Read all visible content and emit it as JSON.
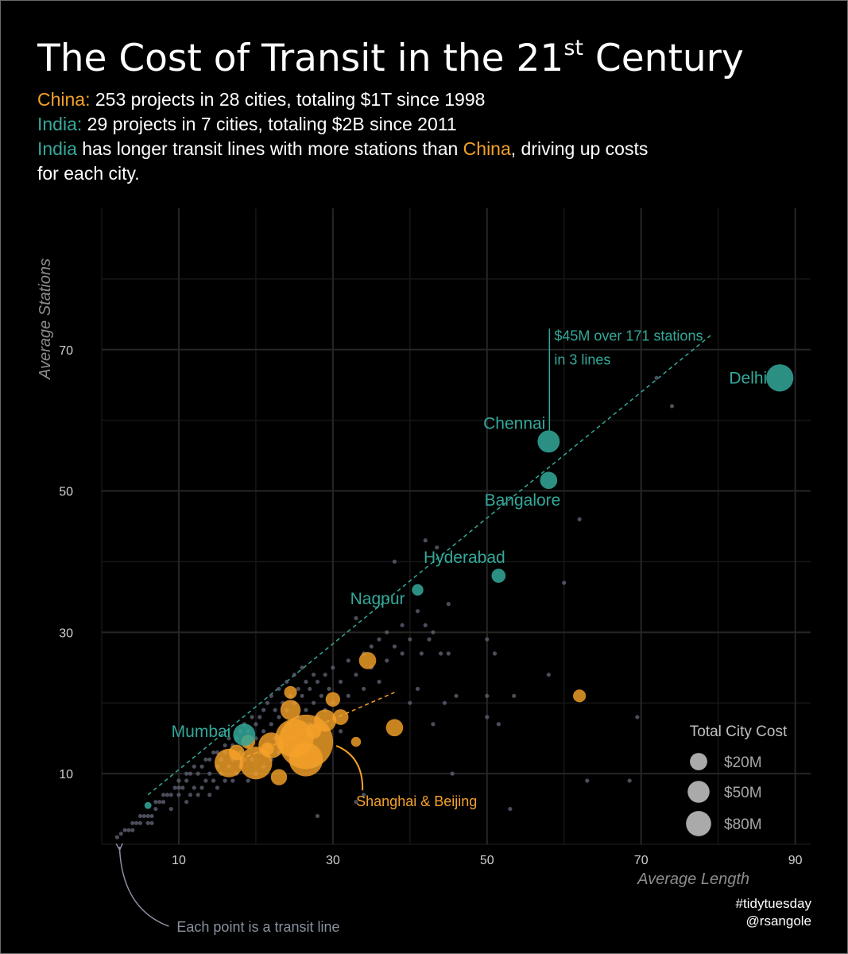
{
  "header": {
    "title": "The Cost of Transit in the 21",
    "title_sup": "st",
    "title_end": " Century",
    "china_label": "China:",
    "china_text": " 253 projects in 28 cities, totaling $1T since 1998",
    "india_label": "India:",
    "india_text": "  29 projects in 7 cities, totaling $2B since 2011",
    "line3_india": "India",
    "line3_mid": " has longer transit lines with more stations than ",
    "line3_china": "China",
    "line3_end": ", driving up costs",
    "line4": "for each city."
  },
  "credits": {
    "line1": "#tidytuesday",
    "line2": "@rsangole"
  },
  "chart_data": {
    "type": "scatter",
    "xlabel": "Average Length",
    "ylabel": "Average Stations",
    "xlim": [
      0,
      92
    ],
    "ylim": [
      0,
      90
    ],
    "x_ticks": [
      10,
      30,
      50,
      70,
      90
    ],
    "y_ticks": [
      10,
      30,
      50,
      70
    ],
    "grid": true,
    "legend_placement": "bottom-right",
    "colors": {
      "china": "#f5a12a",
      "india": "#34a89a",
      "other": "#5c6070",
      "muted": "#8a90a0"
    },
    "size_legend": {
      "title": "Total City Cost",
      "entries": [
        {
          "label": "$20M",
          "value": 20
        },
        {
          "label": "$50M",
          "value": 50
        },
        {
          "label": "$80M",
          "value": 80
        }
      ]
    },
    "india_cities": [
      {
        "name": "Delhi",
        "x": 88,
        "y": 66,
        "cost": 45
      },
      {
        "name": "Chennai",
        "x": 58,
        "y": 57,
        "cost": 30
      },
      {
        "name": "Bangalore",
        "x": 58,
        "y": 51.5,
        "cost": 18
      },
      {
        "name": "Hyderabad",
        "x": 51.5,
        "y": 38,
        "cost": 12
      },
      {
        "name": "Nagpur",
        "x": 41,
        "y": 36,
        "cost": 8
      },
      {
        "name": "Mumbai",
        "x": 18.5,
        "y": 15.5,
        "cost": 30
      },
      {
        "name": "",
        "x": 6,
        "y": 5.5,
        "cost": 3
      }
    ],
    "china_cities": [
      {
        "x": 26.5,
        "y": 14.5,
        "cost": 180
      },
      {
        "x": 25,
        "y": 15,
        "cost": 90
      },
      {
        "x": 26.5,
        "y": 12,
        "cost": 70
      },
      {
        "x": 20,
        "y": 11.5,
        "cost": 65
      },
      {
        "x": 16.5,
        "y": 11.5,
        "cost": 50
      },
      {
        "x": 22,
        "y": 14,
        "cost": 40
      },
      {
        "x": 29,
        "y": 17.5,
        "cost": 30
      },
      {
        "x": 24.5,
        "y": 19,
        "cost": 25
      },
      {
        "x": 34.5,
        "y": 26,
        "cost": 18
      },
      {
        "x": 38,
        "y": 16.5,
        "cost": 18
      },
      {
        "x": 31,
        "y": 18,
        "cost": 15
      },
      {
        "x": 30,
        "y": 20.5,
        "cost": 13
      },
      {
        "x": 23,
        "y": 9.5,
        "cost": 16
      },
      {
        "x": 24.5,
        "y": 21.5,
        "cost": 10
      },
      {
        "x": 19,
        "y": 14.5,
        "cost": 12
      },
      {
        "x": 17.5,
        "y": 13,
        "cost": 15
      },
      {
        "x": 62,
        "y": 21,
        "cost": 10
      },
      {
        "x": 21.5,
        "y": 13.5,
        "cost": 10
      },
      {
        "x": 27.5,
        "y": 16,
        "cost": 14
      },
      {
        "x": 33,
        "y": 14.5,
        "cost": 6
      }
    ],
    "transit_lines": [
      [
        2,
        1
      ],
      [
        2.5,
        1.5
      ],
      [
        3,
        2
      ],
      [
        3.5,
        2
      ],
      [
        4,
        2
      ],
      [
        4,
        3
      ],
      [
        4.5,
        3
      ],
      [
        5,
        3
      ],
      [
        5,
        4
      ],
      [
        5.5,
        4
      ],
      [
        6,
        4
      ],
      [
        6,
        3
      ],
      [
        6.5,
        3
      ],
      [
        6.5,
        4
      ],
      [
        7,
        5
      ],
      [
        7,
        6
      ],
      [
        7.5,
        6
      ],
      [
        8,
        6
      ],
      [
        8,
        7
      ],
      [
        8.5,
        7
      ],
      [
        9,
        7
      ],
      [
        9,
        5
      ],
      [
        9.5,
        8
      ],
      [
        10,
        7
      ],
      [
        10,
        8
      ],
      [
        10,
        9
      ],
      [
        10.5,
        8
      ],
      [
        11,
        6
      ],
      [
        11,
        9
      ],
      [
        11,
        10
      ],
      [
        11.5,
        7
      ],
      [
        11.5,
        10
      ],
      [
        12,
        8
      ],
      [
        12,
        11
      ],
      [
        12.5,
        7
      ],
      [
        12.5,
        10
      ],
      [
        13,
        8
      ],
      [
        13,
        11
      ],
      [
        13.5,
        9
      ],
      [
        13.5,
        12
      ],
      [
        14,
        7
      ],
      [
        14,
        10
      ],
      [
        14,
        12
      ],
      [
        14.5,
        9
      ],
      [
        14.5,
        13
      ],
      [
        15,
        8
      ],
      [
        15,
        11
      ],
      [
        15,
        13
      ],
      [
        15.5,
        10
      ],
      [
        15.5,
        12
      ],
      [
        16,
        9
      ],
      [
        16,
        13
      ],
      [
        16,
        14
      ],
      [
        16.5,
        11
      ],
      [
        16.5,
        15
      ],
      [
        17,
        9
      ],
      [
        17,
        12
      ],
      [
        17,
        14
      ],
      [
        17.5,
        10
      ],
      [
        17.5,
        15
      ],
      [
        18,
        11
      ],
      [
        18,
        13
      ],
      [
        18,
        16
      ],
      [
        18.5,
        12
      ],
      [
        18.5,
        17
      ],
      [
        19,
        9
      ],
      [
        19,
        14
      ],
      [
        19,
        16
      ],
      [
        19.5,
        12
      ],
      [
        19.5,
        18
      ],
      [
        20,
        10
      ],
      [
        20,
        15
      ],
      [
        20,
        17
      ],
      [
        20.5,
        13
      ],
      [
        20.5,
        18
      ],
      [
        21,
        11
      ],
      [
        21,
        16
      ],
      [
        21,
        19
      ],
      [
        21.5,
        14
      ],
      [
        21.5,
        20
      ],
      [
        22,
        12
      ],
      [
        22,
        17
      ],
      [
        22,
        21
      ],
      [
        22.5,
        15
      ],
      [
        22.5,
        19
      ],
      [
        23,
        13
      ],
      [
        23,
        18
      ],
      [
        23,
        22
      ],
      [
        23.5,
        16
      ],
      [
        23.5,
        20
      ],
      [
        24,
        14
      ],
      [
        24,
        19
      ],
      [
        24,
        23
      ],
      [
        24.5,
        17
      ],
      [
        24.5,
        21
      ],
      [
        25,
        15
      ],
      [
        25,
        20
      ],
      [
        25,
        24
      ],
      [
        25.5,
        18
      ],
      [
        25.5,
        22
      ],
      [
        26,
        16
      ],
      [
        26,
        21
      ],
      [
        26,
        25
      ],
      [
        26.5,
        19
      ],
      [
        26.5,
        23
      ],
      [
        27,
        17
      ],
      [
        27,
        22
      ],
      [
        27.5,
        20
      ],
      [
        27.5,
        24
      ],
      [
        28,
        18
      ],
      [
        28,
        23
      ],
      [
        28,
        4
      ],
      [
        28.5,
        21
      ],
      [
        29,
        19
      ],
      [
        29,
        24
      ],
      [
        29.5,
        22
      ],
      [
        30,
        20
      ],
      [
        30,
        25
      ],
      [
        31,
        23
      ],
      [
        31,
        16
      ],
      [
        32,
        21
      ],
      [
        32,
        26
      ],
      [
        33,
        24
      ],
      [
        33,
        6
      ],
      [
        33,
        32
      ],
      [
        34,
        22
      ],
      [
        34,
        27
      ],
      [
        34,
        7
      ],
      [
        35,
        28
      ],
      [
        35,
        25
      ],
      [
        36,
        23
      ],
      [
        36,
        29
      ],
      [
        37,
        30
      ],
      [
        37,
        26
      ],
      [
        38,
        28
      ],
      [
        38,
        40
      ],
      [
        39,
        31
      ],
      [
        39,
        27
      ],
      [
        40,
        20
      ],
      [
        40,
        29
      ],
      [
        41,
        22
      ],
      [
        41,
        33
      ],
      [
        41.5,
        27
      ],
      [
        42,
        31
      ],
      [
        42,
        43
      ],
      [
        42.5,
        29
      ],
      [
        43,
        17
      ],
      [
        43,
        30
      ],
      [
        43.5,
        42
      ],
      [
        44,
        27
      ],
      [
        44.5,
        20
      ],
      [
        45,
        27
      ],
      [
        45,
        34
      ],
      [
        45.5,
        10
      ],
      [
        46,
        21
      ],
      [
        50,
        29
      ],
      [
        50,
        21
      ],
      [
        50,
        18
      ],
      [
        51,
        27
      ],
      [
        51.5,
        17
      ],
      [
        53,
        5
      ],
      [
        53.5,
        21
      ],
      [
        58,
        24
      ],
      [
        60,
        37
      ],
      [
        62,
        46
      ],
      [
        63,
        9
      ],
      [
        68.5,
        9
      ],
      [
        69.5,
        18
      ],
      [
        72,
        66
      ],
      [
        74,
        62
      ]
    ],
    "trend_india": {
      "from": [
        6,
        7
      ],
      "to": [
        79,
        72
      ]
    },
    "trend_china": {
      "from": [
        18,
        12
      ],
      "to": [
        38,
        21.5
      ]
    },
    "annotations": {
      "delhi_note_1": "$45M over 171 stations",
      "delhi_note_2": "in 3 lines",
      "shanghai_beijing": "Shanghai & Beijing",
      "each_point": "Each point is a transit line"
    }
  }
}
